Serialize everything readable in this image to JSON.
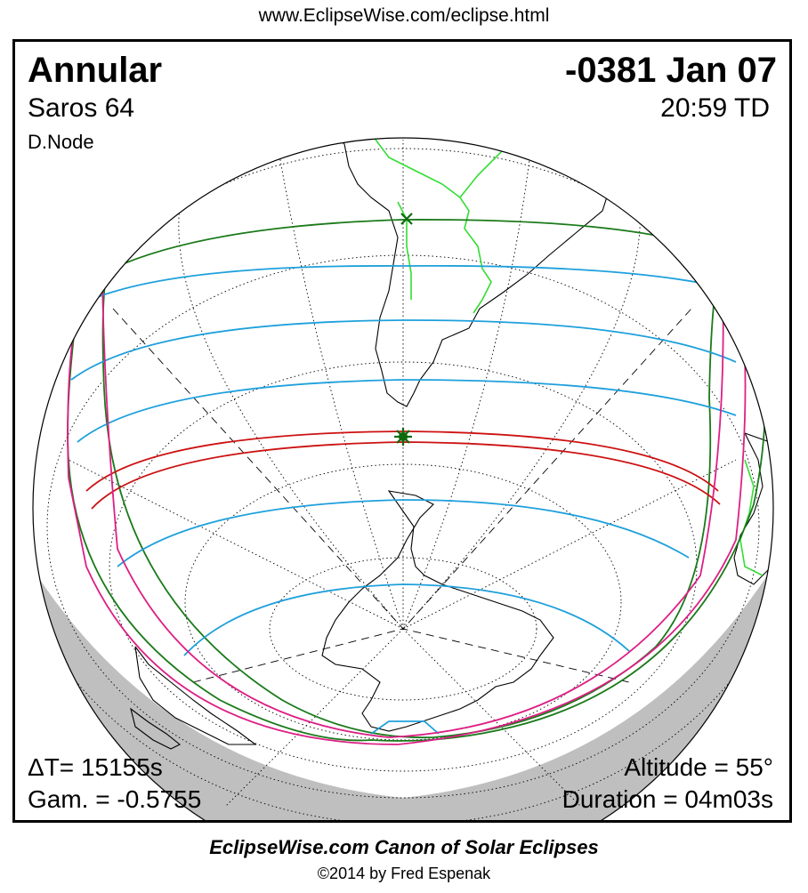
{
  "header_url": "www.EclipseWise.com/eclipse.html",
  "eclipse": {
    "type": "Annular",
    "date": "-0381 Jan 07",
    "saros": "Saros  64",
    "time": "20:59 TD",
    "node": "D.Node",
    "delta_t": "ΔT=  15155s",
    "gamma": "Gam. = -0.5755",
    "altitude": "Altitude = 55°",
    "duration": "Duration = 04m03s"
  },
  "footer": {
    "title": "EclipseWise.com Canon of Solar Eclipses",
    "copyright": "©2014 by Fred Espenak"
  },
  "colors": {
    "penumbral_limit": "#1a7a1a",
    "magnitude_curves": "#1ea0dc",
    "central_path": "#cc1111",
    "rise_set_curve": "#dd1f85",
    "country_borders": "#33dd33",
    "night_side": "#bfbfbf",
    "greatest_eclipse_marker": "#0d6b0d"
  },
  "markers": {
    "greatest_eclipse": "star-icon",
    "subsolar_point": "x-icon"
  }
}
